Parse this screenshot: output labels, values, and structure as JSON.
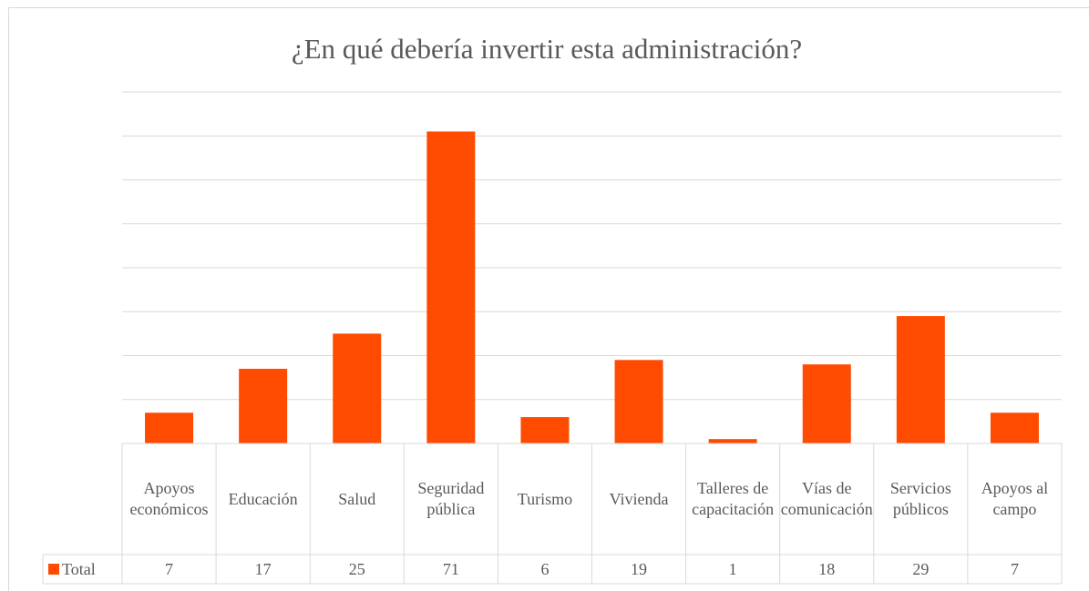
{
  "chart_data": {
    "type": "bar",
    "title": "¿En qué debería invertir esta administración?",
    "categories": [
      "Apoyos económicos",
      "Educación",
      "Salud",
      "Seguridad pública",
      "Turismo",
      "Vivienda",
      "Talleres de capacitación",
      "Vías de comunicación",
      "Servicios públicos",
      "Apoyos al campo"
    ],
    "series": [
      {
        "name": "Total",
        "color": "#ff4b00",
        "values": [
          7,
          17,
          25,
          71,
          6,
          19,
          1,
          18,
          29,
          7
        ]
      }
    ],
    "ylim": [
      0,
      80
    ],
    "yticks": [
      0,
      10,
      20,
      30,
      40,
      50,
      60,
      70,
      80
    ],
    "grid": true,
    "data_table": true
  }
}
